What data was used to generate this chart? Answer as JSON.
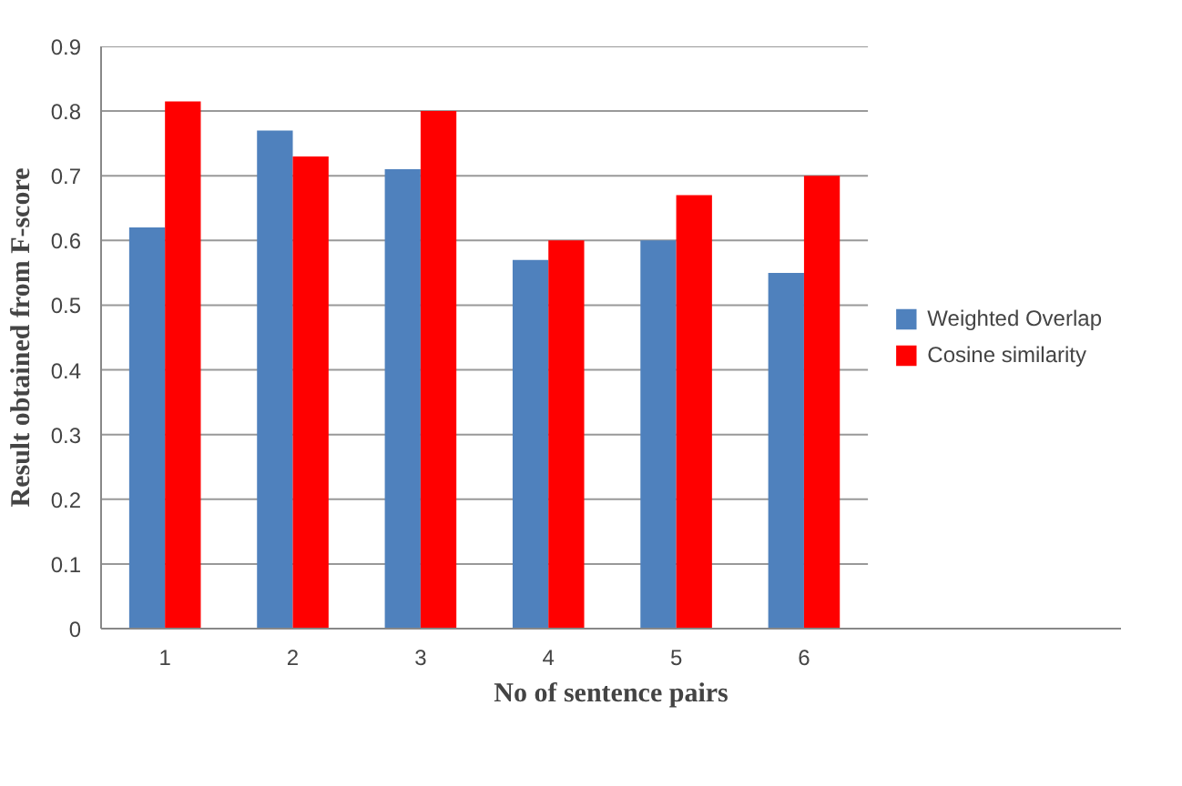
{
  "chart_data": {
    "type": "bar",
    "xlabel": "No of sentence pairs",
    "ylabel": "Result obtained from F-score",
    "categories": [
      "1",
      "2",
      "3",
      "4",
      "5",
      "6"
    ],
    "series": [
      {
        "name": "Weighted Overlap",
        "color": "#4f81bd",
        "values": [
          0.62,
          0.77,
          0.71,
          0.57,
          0.6,
          0.55
        ]
      },
      {
        "name": "Cosine similarity",
        "color": "#ff0000",
        "values": [
          0.815,
          0.73,
          0.8,
          0.6,
          0.67,
          0.7
        ]
      }
    ],
    "ylim": [
      0,
      0.9
    ],
    "yticks": [
      0,
      0.1,
      0.2,
      0.3,
      0.4,
      0.5,
      0.6,
      0.7,
      0.8,
      0.9
    ],
    "grid": "y",
    "legend": "right"
  }
}
